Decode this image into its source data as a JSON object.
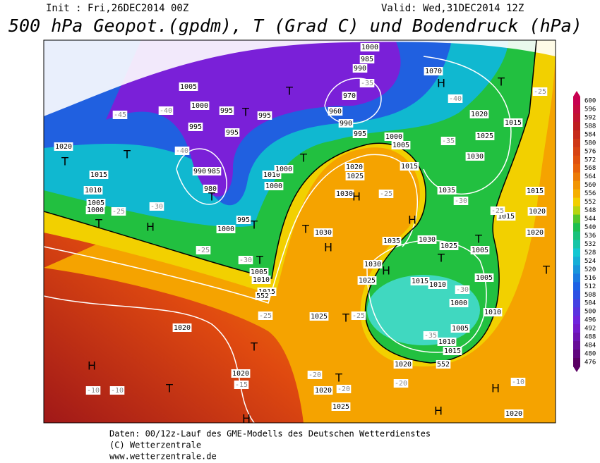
{
  "header": {
    "init": "Init : Fri,26DEC2014 00Z",
    "valid": "Valid: Wed,31DEC2014 12Z",
    "title": "500 hPa Geopot.(gpdm), T (Grad C) und Bodendruck (hPa)"
  },
  "legend": {
    "ticks": [
      600,
      596,
      592,
      588,
      584,
      580,
      576,
      572,
      568,
      564,
      560,
      556,
      552,
      548,
      544,
      540,
      536,
      532,
      528,
      524,
      520,
      516,
      512,
      508,
      504,
      500,
      496,
      492,
      488,
      484,
      480,
      476
    ]
  },
  "map": {
    "labels": [
      "T",
      "T",
      "H",
      "T",
      "1020",
      "1015",
      "1010",
      "1005",
      "1000",
      "-25",
      "-30",
      "-40",
      "-45",
      "-40",
      "1005",
      "1000",
      "995",
      "990",
      "985",
      "980",
      "T",
      "T",
      "995",
      "995",
      "995",
      "1000",
      "995",
      "T",
      "-25",
      "T",
      "1005",
      "1010",
      "1015",
      "-30",
      "1010",
      "1000",
      "1000",
      "T",
      "T",
      "1000",
      "985",
      "990",
      "-35",
      "970",
      "960",
      "990",
      "995",
      "1000",
      "1005",
      "1015",
      "1020",
      "1025",
      "1030",
      "H",
      "H",
      "1030",
      "T",
      "1070",
      "H",
      "T",
      "-40",
      "1020",
      "1025",
      "1030",
      "1015",
      "-35",
      "1035",
      "-30",
      "H",
      "-25",
      "1030",
      "1035",
      "1025",
      "T",
      "1005",
      "T",
      "H",
      "1030",
      "1025",
      "1015",
      "1010",
      "-30",
      "1000",
      "1005",
      "1010",
      "1005",
      "-35",
      "1010",
      "1015",
      "1020",
      "552",
      "T",
      "-25",
      "1025",
      "T",
      "1020",
      "-15",
      "1020",
      "-25",
      "H",
      "-10",
      "-10",
      "T",
      "1025",
      "1020",
      "-20",
      "-20",
      "H",
      "T",
      "-20",
      "H",
      "H",
      "-10",
      "1020",
      "T",
      "1015",
      "1020",
      "1020",
      "-25",
      "1015",
      "-25",
      "552"
    ]
  },
  "footer": [
    "Daten: 00/12z-Lauf des GME-Modells des Deutschen Wetterdienstes",
    "(C) Wetterzentrale",
    "www.wetterzentrale.de"
  ]
}
